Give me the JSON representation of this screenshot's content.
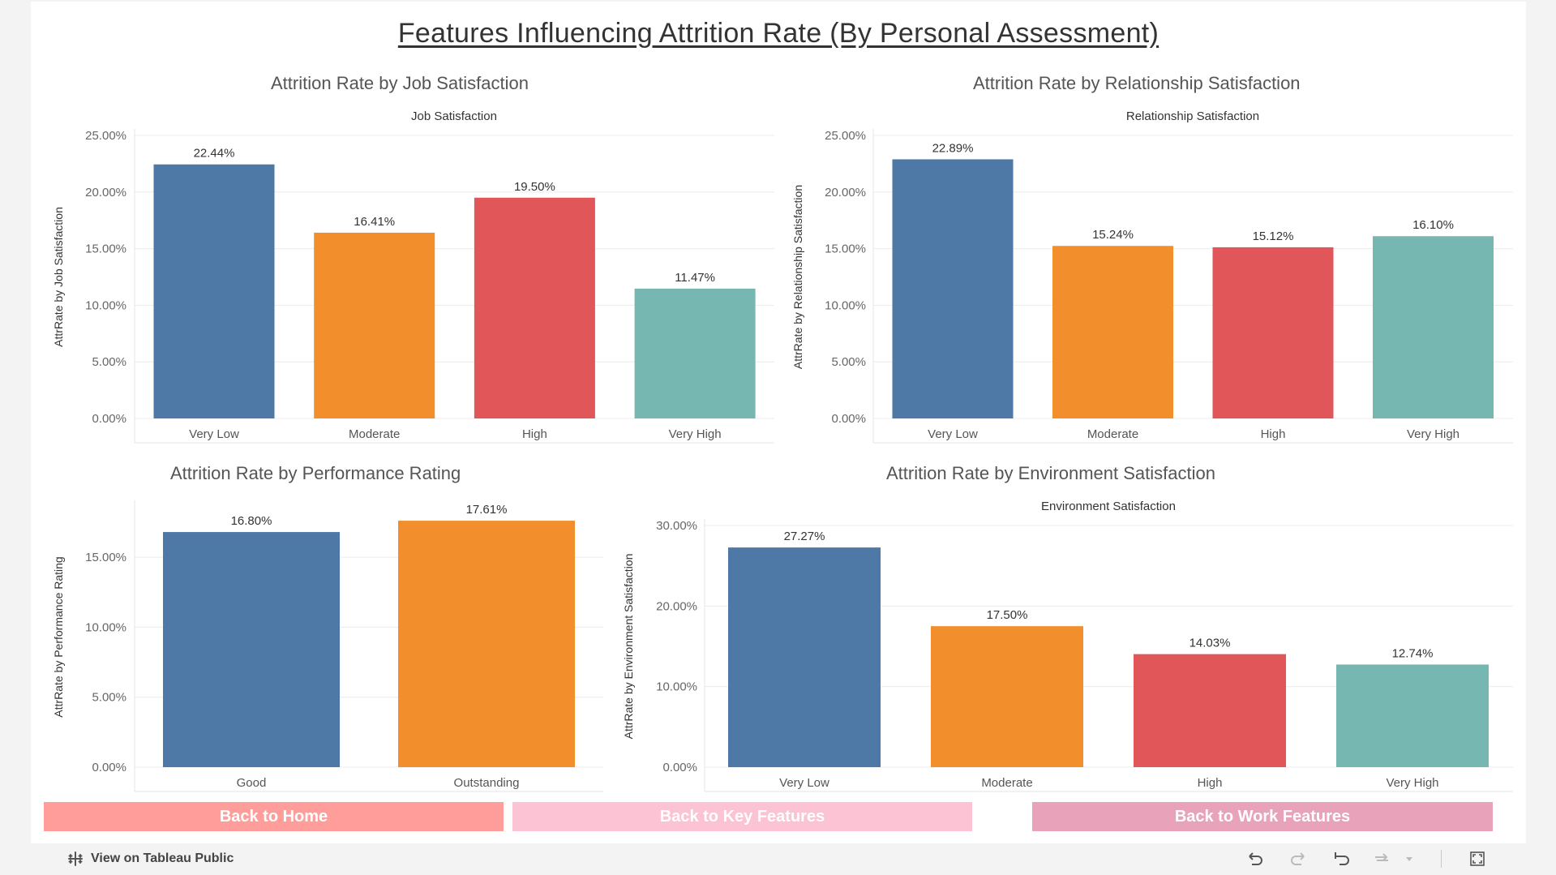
{
  "title": "Features Influencing Attrition Rate (By Personal Assessment)",
  "colors": {
    "blue": "#4e79a7",
    "orange": "#f28e2b",
    "red": "#e15759",
    "teal": "#76b7b2",
    "gridline": "#ececec",
    "btn_home": "#ff9d9a",
    "btn_key": "#fbc3d3",
    "btn_work": "#e8a2b9"
  },
  "chart_data": [
    {
      "type": "bar",
      "title": "Attrition Rate by Job Satisfaction",
      "subtitle": "Job Satisfaction",
      "ylabel": "AttrRate by Job Satisfaction",
      "xlabel": "",
      "categories": [
        "Very Low",
        "Moderate",
        "High",
        "Very High"
      ],
      "values": [
        22.44,
        16.41,
        19.5,
        11.47
      ],
      "value_labels": [
        "22.44%",
        "16.41%",
        "19.50%",
        "11.47%"
      ],
      "bar_colors": [
        "#4e79a7",
        "#f28e2b",
        "#e15759",
        "#76b7b2"
      ],
      "ylim": [
        0,
        25
      ],
      "yticks": [
        0,
        5,
        10,
        15,
        20,
        25
      ],
      "ytick_labels": [
        "0.00%",
        "5.00%",
        "10.00%",
        "15.00%",
        "20.00%",
        "25.00%"
      ],
      "grid": true
    },
    {
      "type": "bar",
      "title": "Attrition Rate by Relationship Satisfaction",
      "subtitle": "Relationship Satisfaction",
      "ylabel": "AttrRate by Relationship Satisfaction",
      "xlabel": "",
      "categories": [
        "Very Low",
        "Moderate",
        "High",
        "Very High"
      ],
      "values": [
        22.89,
        15.24,
        15.12,
        16.1
      ],
      "value_labels": [
        "22.89%",
        "15.24%",
        "15.12%",
        "16.10%"
      ],
      "bar_colors": [
        "#4e79a7",
        "#f28e2b",
        "#e15759",
        "#76b7b2"
      ],
      "ylim": [
        0,
        25
      ],
      "yticks": [
        0,
        5,
        10,
        15,
        20,
        25
      ],
      "ytick_labels": [
        "0.00%",
        "5.00%",
        "10.00%",
        "15.00%",
        "20.00%",
        "25.00%"
      ],
      "grid": true
    },
    {
      "type": "bar",
      "title": "Attrition Rate by Performance Rating",
      "subtitle": "",
      "ylabel": "AttrRate by Performance Rating",
      "xlabel": "",
      "categories": [
        "Good",
        "Outstanding"
      ],
      "values": [
        16.8,
        17.61
      ],
      "value_labels": [
        "16.80%",
        "17.61%"
      ],
      "bar_colors": [
        "#4e79a7",
        "#f28e2b"
      ],
      "ylim": [
        0,
        18.6
      ],
      "yticks": [
        0,
        5,
        10,
        15
      ],
      "ytick_labels": [
        "0.00%",
        "5.00%",
        "10.00%",
        "15.00%"
      ],
      "grid": true
    },
    {
      "type": "bar",
      "title": "Attrition Rate by Environment Satisfaction",
      "subtitle": "Environment Satisfaction",
      "ylabel": "AttrRate by Environment Satisfaction",
      "xlabel": "",
      "categories": [
        "Very Low",
        "Moderate",
        "High",
        "Very High"
      ],
      "values": [
        27.27,
        17.5,
        14.03,
        12.74
      ],
      "value_labels": [
        "27.27%",
        "17.50%",
        "14.03%",
        "12.74%"
      ],
      "bar_colors": [
        "#4e79a7",
        "#f28e2b",
        "#e15759",
        "#76b7b2"
      ],
      "ylim": [
        0,
        30
      ],
      "yticks": [
        0,
        10,
        20,
        30
      ],
      "ytick_labels": [
        "0.00%",
        "10.00%",
        "20.00%",
        "30.00%"
      ],
      "grid": true
    }
  ],
  "buttons": {
    "home": "Back to Home",
    "key_features": "Back to Key Features",
    "work_features": "Back to Work Features"
  },
  "footer": {
    "view_on_tableau": "View on Tableau Public",
    "toolbar_icons": [
      "undo-icon",
      "redo-icon",
      "revert-icon",
      "refresh-icon",
      "dropdown-icon",
      "fullscreen-icon"
    ]
  }
}
